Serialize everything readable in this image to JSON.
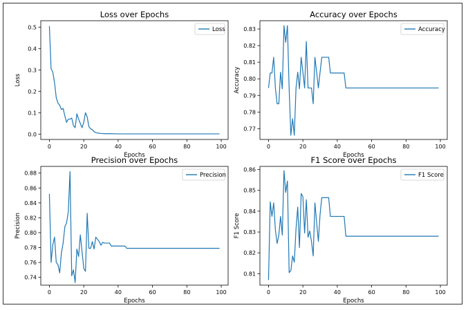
{
  "chart_data": [
    {
      "type": "line",
      "title": "Loss over Epochs",
      "xlabel": "Epochs",
      "ylabel": "Loss",
      "xlim": [
        -5,
        104
      ],
      "ylim": [
        -0.025,
        0.53
      ],
      "xticks": [
        0,
        20,
        40,
        60,
        80,
        100
      ],
      "yticks": [
        0.0,
        0.1,
        0.2,
        0.3,
        0.4,
        0.5
      ],
      "ytick_labels": [
        "0.0",
        "0.1",
        "0.2",
        "0.3",
        "0.4",
        "0.5"
      ],
      "legend_position": "top-right",
      "grid": false,
      "series": [
        {
          "name": "Loss",
          "color": "#1f77b4",
          "x": [
            0,
            1,
            2,
            3,
            4,
            5,
            6,
            7,
            8,
            9,
            10,
            11,
            12,
            13,
            14,
            15,
            16,
            17,
            18,
            19,
            20,
            21,
            22,
            23,
            24,
            25,
            26,
            27,
            28,
            29,
            30,
            32,
            35,
            40,
            45,
            50,
            60,
            70,
            80,
            90,
            99
          ],
          "y": [
            0.505,
            0.305,
            0.29,
            0.24,
            0.17,
            0.145,
            0.135,
            0.115,
            0.12,
            0.085,
            0.055,
            0.07,
            0.07,
            0.075,
            0.04,
            0.03,
            0.095,
            0.07,
            0.05,
            0.03,
            0.055,
            0.1,
            0.08,
            0.035,
            0.025,
            0.02,
            0.012,
            0.007,
            0.005,
            0.004,
            0.003,
            0.002,
            0.002,
            0.001,
            0.001,
            0.001,
            0.001,
            0.001,
            0.001,
            0.001,
            0.001
          ]
        }
      ]
    },
    {
      "type": "line",
      "title": "Accuracy over Epochs",
      "xlabel": "Epochs",
      "ylabel": "Accuracy",
      "xlim": [
        -5,
        104
      ],
      "ylim": [
        0.7635,
        0.835
      ],
      "xticks": [
        0,
        20,
        40,
        60,
        80,
        100
      ],
      "yticks": [
        0.77,
        0.78,
        0.79,
        0.8,
        0.81,
        0.82,
        0.83
      ],
      "ytick_labels": [
        "0.77",
        "0.78",
        "0.79",
        "0.80",
        "0.81",
        "0.82",
        "0.83"
      ],
      "legend_position": "top-right",
      "grid": false,
      "series": [
        {
          "name": "Accuracy",
          "color": "#1f77b4",
          "x": [
            0,
            1,
            2,
            3,
            4,
            5,
            6,
            7,
            8,
            9,
            10,
            11,
            12,
            13,
            14,
            15,
            16,
            17,
            18,
            19,
            20,
            21,
            22,
            23,
            24,
            25,
            26,
            27,
            28,
            29,
            30,
            31,
            32,
            33,
            34,
            35,
            36,
            37,
            38,
            39,
            40,
            41,
            42,
            43,
            44,
            45,
            50,
            60,
            70,
            80,
            90,
            99
          ],
          "y": [
            0.7945,
            0.8035,
            0.8035,
            0.813,
            0.7945,
            0.785,
            0.785,
            0.804,
            0.794,
            0.832,
            0.822,
            0.832,
            0.794,
            0.766,
            0.776,
            0.766,
            0.7945,
            0.804,
            0.794,
            0.813,
            0.804,
            0.7945,
            0.8225,
            0.7945,
            0.7945,
            0.7945,
            0.785,
            0.813,
            0.804,
            0.7945,
            0.804,
            0.813,
            0.813,
            0.813,
            0.813,
            0.813,
            0.8035,
            0.8035,
            0.8035,
            0.8035,
            0.8035,
            0.8035,
            0.8035,
            0.8035,
            0.8035,
            0.7945,
            0.7945,
            0.7945,
            0.7945,
            0.7945,
            0.7945,
            0.7945
          ]
        }
      ]
    },
    {
      "type": "line",
      "title": "Precision over Epochs",
      "xlabel": "Epochs",
      "ylabel": "Precision",
      "xlim": [
        -5,
        104
      ],
      "ylim": [
        0.7295,
        0.889
      ],
      "xticks": [
        0,
        20,
        40,
        60,
        80,
        100
      ],
      "yticks": [
        0.74,
        0.76,
        0.78,
        0.8,
        0.82,
        0.84,
        0.86,
        0.88
      ],
      "ytick_labels": [
        "0.74",
        "0.76",
        "0.78",
        "0.80",
        "0.82",
        "0.84",
        "0.86",
        "0.88"
      ],
      "legend_position": "top-right",
      "grid": false,
      "series": [
        {
          "name": "Precision",
          "color": "#1f77b4",
          "x": [
            0,
            1,
            2,
            3,
            4,
            5,
            6,
            7,
            8,
            9,
            10,
            11,
            12,
            13,
            14,
            15,
            16,
            17,
            18,
            19,
            20,
            21,
            22,
            23,
            24,
            25,
            26,
            27,
            28,
            29,
            30,
            31,
            32,
            33,
            34,
            35,
            36,
            37,
            38,
            39,
            40,
            41,
            42,
            43,
            44,
            45,
            50,
            60,
            70,
            80,
            90,
            99
          ],
          "y": [
            0.852,
            0.76,
            0.784,
            0.794,
            0.76,
            0.757,
            0.746,
            0.773,
            0.786,
            0.808,
            0.813,
            0.828,
            0.882,
            0.742,
            0.75,
            0.733,
            0.778,
            0.768,
            0.797,
            0.775,
            0.752,
            0.748,
            0.826,
            0.779,
            0.779,
            0.788,
            0.778,
            0.794,
            0.791,
            0.788,
            0.783,
            0.787,
            0.786,
            0.786,
            0.786,
            0.786,
            0.782,
            0.782,
            0.782,
            0.782,
            0.782,
            0.782,
            0.782,
            0.782,
            0.782,
            0.779,
            0.779,
            0.779,
            0.779,
            0.779,
            0.779,
            0.779
          ]
        }
      ]
    },
    {
      "type": "line",
      "title": "F1 Score over Epochs",
      "xlabel": "Epochs",
      "ylabel": "F1 Score",
      "xlim": [
        -5,
        104
      ],
      "ylim": [
        0.8045,
        0.8615
      ],
      "xticks": [
        0,
        20,
        40,
        60,
        80,
        100
      ],
      "yticks": [
        0.81,
        0.82,
        0.83,
        0.84,
        0.85,
        0.86
      ],
      "ytick_labels": [
        "0.81",
        "0.82",
        "0.83",
        "0.84",
        "0.85",
        "0.86"
      ],
      "legend_position": "top-right",
      "grid": false,
      "series": [
        {
          "name": "F1 Score",
          "color": "#1f77b4",
          "x": [
            0,
            1,
            2,
            3,
            4,
            5,
            6,
            7,
            8,
            9,
            10,
            11,
            12,
            13,
            14,
            15,
            16,
            17,
            18,
            19,
            20,
            21,
            22,
            23,
            24,
            25,
            26,
            27,
            28,
            29,
            30,
            31,
            32,
            33,
            34,
            35,
            36,
            37,
            38,
            39,
            40,
            41,
            42,
            43,
            44,
            45,
            50,
            60,
            70,
            80,
            90,
            99
          ],
          "y": [
            0.807,
            0.8445,
            0.8375,
            0.844,
            0.831,
            0.8245,
            0.8285,
            0.8375,
            0.8285,
            0.8595,
            0.849,
            0.8545,
            0.8105,
            0.8115,
            0.8185,
            0.8155,
            0.8315,
            0.842,
            0.8225,
            0.8485,
            0.847,
            0.8295,
            0.8455,
            0.8275,
            0.8305,
            0.8255,
            0.8185,
            0.844,
            0.8345,
            0.8255,
            0.8385,
            0.8465,
            0.8465,
            0.8465,
            0.8465,
            0.8465,
            0.8375,
            0.8375,
            0.8375,
            0.8375,
            0.8375,
            0.8375,
            0.8375,
            0.8375,
            0.8375,
            0.828,
            0.828,
            0.828,
            0.828,
            0.828,
            0.828,
            0.828
          ]
        }
      ]
    }
  ]
}
